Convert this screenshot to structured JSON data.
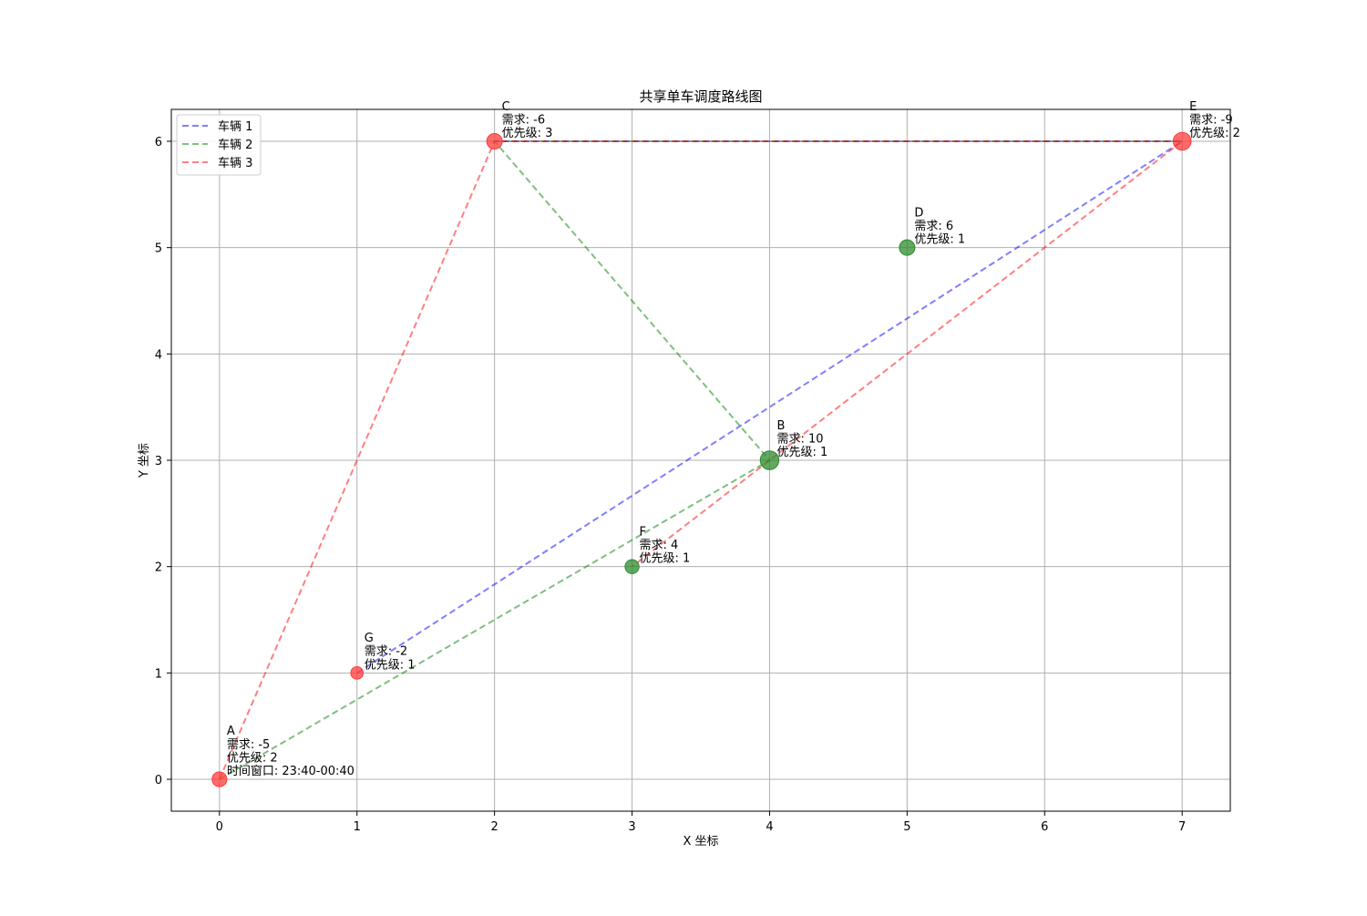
{
  "chart_data": {
    "type": "scatter",
    "title": "共享单车调度路线图",
    "xlabel": "X 坐标",
    "ylabel": "Y 坐标",
    "xlim": [
      -0.35,
      7.35
    ],
    "ylim": [
      -0.3,
      6.3
    ],
    "xticks": [
      0,
      1,
      2,
      3,
      4,
      5,
      6,
      7
    ],
    "yticks": [
      0,
      1,
      2,
      3,
      4,
      5,
      6
    ],
    "grid": true,
    "legend_position": "upper left",
    "points": [
      {
        "name": "A",
        "x": 0,
        "y": 0,
        "demand": -5,
        "priority": 2,
        "time_window": "23:40-00:40",
        "color": "#ff3b3b",
        "lines": [
          "A",
          "需求: -5",
          "优先级: 2",
          "时间窗口: 23:40-00:40"
        ]
      },
      {
        "name": "B",
        "x": 4,
        "y": 3,
        "demand": 10,
        "priority": 1,
        "color": "#2e8b2e",
        "lines": [
          "B",
          "需求: 10",
          "优先级: 1"
        ]
      },
      {
        "name": "C",
        "x": 2,
        "y": 6,
        "demand": -6,
        "priority": 3,
        "color": "#ff3b3b",
        "lines": [
          "C",
          "需求: -6",
          "优先级: 3"
        ]
      },
      {
        "name": "D",
        "x": 5,
        "y": 5,
        "demand": 6,
        "priority": 1,
        "color": "#2e8b2e",
        "lines": [
          "D",
          "需求: 6",
          "优先级: 1"
        ]
      },
      {
        "name": "E",
        "x": 7,
        "y": 6,
        "demand": -9,
        "priority": 2,
        "color": "#ff3b3b",
        "lines": [
          "E",
          "需求: -9",
          "优先级: 2"
        ]
      },
      {
        "name": "F",
        "x": 3,
        "y": 2,
        "demand": 4,
        "priority": 1,
        "color": "#2e8b2e",
        "lines": [
          "F",
          "需求: 4",
          "优先级: 1"
        ]
      },
      {
        "name": "G",
        "x": 1,
        "y": 1,
        "demand": -2,
        "priority": 1,
        "color": "#ff3b3b",
        "lines": [
          "G",
          "需求: -2",
          "优先级: 1"
        ]
      }
    ],
    "series": [
      {
        "name": "车辆 1",
        "color": "#0000ff",
        "route": [
          "G",
          "E",
          "C"
        ]
      },
      {
        "name": "车辆 2",
        "color": "#008000",
        "route": [
          "A",
          "B",
          "C",
          "E"
        ]
      },
      {
        "name": "车辆 3",
        "color": "#ff0000",
        "route": [
          "A",
          "C",
          "E",
          "B",
          "F"
        ]
      }
    ]
  }
}
